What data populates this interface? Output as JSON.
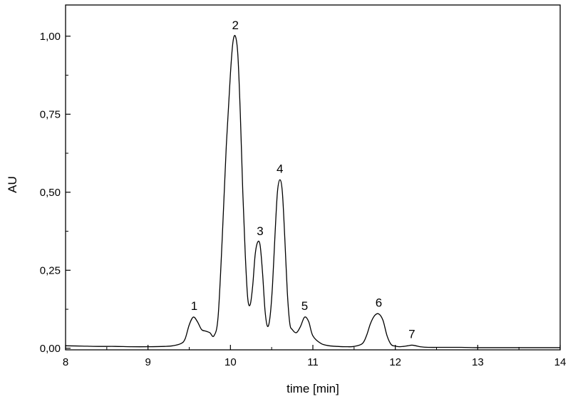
{
  "chart_data": {
    "type": "line",
    "title": "",
    "xlabel": "time [min]",
    "ylabel": "AU",
    "xlim": [
      8,
      14
    ],
    "ylim": [
      -0.005,
      1.1
    ],
    "grid": false,
    "x_ticks": [
      8,
      9,
      10,
      11,
      12,
      13,
      14
    ],
    "x_tick_labels": [
      "8",
      "9",
      "10",
      "11",
      "12",
      "13",
      "14"
    ],
    "y_ticks": [
      0,
      0.25,
      0.5,
      0.75,
      1.0
    ],
    "y_tick_labels": [
      "0,00",
      "0,25",
      "0,50",
      "0,75",
      "1,00"
    ],
    "series": [
      {
        "color": "#000000",
        "x": [
          8.0,
          8.2,
          8.4,
          8.6,
          8.8,
          9.0,
          9.2,
          9.3,
          9.4,
          9.45,
          9.5,
          9.55,
          9.6,
          9.65,
          9.7,
          9.75,
          9.8,
          9.85,
          9.9,
          9.95,
          10.0,
          10.03,
          10.06,
          10.09,
          10.12,
          10.15,
          10.18,
          10.21,
          10.24,
          10.27,
          10.3,
          10.33,
          10.36,
          10.39,
          10.42,
          10.45,
          10.48,
          10.51,
          10.54,
          10.57,
          10.6,
          10.63,
          10.66,
          10.69,
          10.72,
          10.75,
          10.8,
          10.85,
          10.9,
          10.95,
          11.0,
          11.1,
          11.2,
          11.3,
          11.4,
          11.5,
          11.6,
          11.65,
          11.7,
          11.75,
          11.8,
          11.85,
          11.9,
          11.95,
          12.0,
          12.05,
          12.1,
          12.15,
          12.2,
          12.25,
          12.3,
          12.4,
          12.6,
          12.8,
          13.0,
          13.2,
          13.5,
          14.0
        ],
        "y": [
          0.008,
          0.007,
          0.006,
          0.006,
          0.005,
          0.005,
          0.006,
          0.008,
          0.015,
          0.03,
          0.075,
          0.1,
          0.085,
          0.06,
          0.055,
          0.05,
          0.04,
          0.1,
          0.35,
          0.65,
          0.88,
          0.98,
          1.0,
          0.94,
          0.75,
          0.5,
          0.3,
          0.16,
          0.14,
          0.2,
          0.3,
          0.34,
          0.33,
          0.24,
          0.12,
          0.07,
          0.1,
          0.2,
          0.36,
          0.5,
          0.54,
          0.5,
          0.35,
          0.18,
          0.08,
          0.06,
          0.05,
          0.07,
          0.1,
          0.085,
          0.04,
          0.015,
          0.008,
          0.006,
          0.005,
          0.006,
          0.015,
          0.04,
          0.08,
          0.105,
          0.11,
          0.09,
          0.04,
          0.012,
          0.007,
          0.005,
          0.006,
          0.008,
          0.01,
          0.008,
          0.005,
          0.003,
          0.003,
          0.003,
          0.002,
          0.002,
          0.002,
          0.002
        ]
      }
    ],
    "annotations": [
      {
        "text": "1",
        "x": 9.56,
        "y": 0.1
      },
      {
        "text": "2",
        "x": 10.06,
        "y": 1.0
      },
      {
        "text": "3",
        "x": 10.36,
        "y": 0.34
      },
      {
        "text": "4",
        "x": 10.6,
        "y": 0.54
      },
      {
        "text": "5",
        "x": 10.9,
        "y": 0.1
      },
      {
        "text": "6",
        "x": 11.8,
        "y": 0.11
      },
      {
        "text": "7",
        "x": 12.2,
        "y": 0.01
      }
    ]
  }
}
